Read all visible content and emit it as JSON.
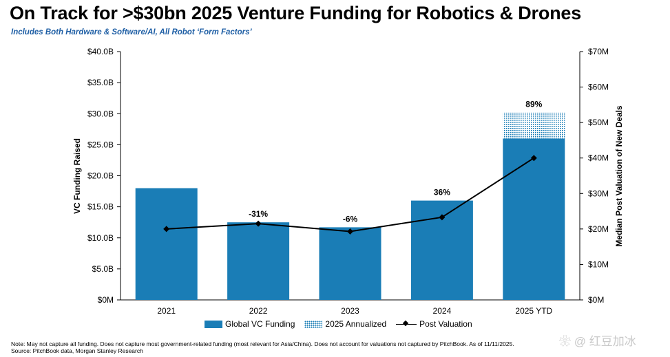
{
  "title": "On Track for >$30bn 2025 Venture Funding for Robotics & Drones",
  "subtitle": "Includes Both Hardware & Software/AI, All Robot ‘Form Factors’",
  "chart_data": {
    "type": "bar",
    "categories": [
      "2021",
      "2022",
      "2023",
      "2024",
      "2025 YTD"
    ],
    "series": [
      {
        "name": "Global VC Funding",
        "axis": "left",
        "values": [
          18.0,
          12.5,
          11.7,
          16.0,
          26.0
        ]
      },
      {
        "name": "2025 Annualized",
        "axis": "left",
        "stacked_on": "Global VC Funding",
        "values": [
          0,
          0,
          0,
          0,
          4.2
        ]
      },
      {
        "name": "Post Valuation",
        "type": "line",
        "axis": "right",
        "values": [
          20.0,
          21.5,
          19.3,
          23.3,
          40.0
        ]
      }
    ],
    "data_labels": [
      "",
      "-31%",
      "-6%",
      "36%",
      "89%"
    ],
    "ylabel": "VC Funding Raised",
    "y2label": "Median Post Valuation of New Deals",
    "ylim": [
      0,
      40
    ],
    "y2lim": [
      0,
      70
    ],
    "yticks": [
      "$0M",
      "$5.0B",
      "$10.0B",
      "$15.0B",
      "$20.0B",
      "$25.0B",
      "$30.0B",
      "$35.0B",
      "$40.0B"
    ],
    "y2ticks": [
      "$0M",
      "$10M",
      "$20M",
      "$30M",
      "$40M",
      "$50M",
      "$60M",
      "$70M"
    ],
    "colors": {
      "bar": "#1a7db6",
      "line": "#000000"
    }
  },
  "legend": {
    "funding": "Global VC Funding",
    "annualized": "2025 Annualized",
    "valuation": "Post Valuation"
  },
  "notes": {
    "line1": "Note: May not capture all funding. Does not capture most government-related funding (most relevant for Asia/China). Does not account for valuations not captured by PitchBook. As of 11/11/2025.",
    "line2": "Source: PitchBook data, Morgan Stanley Research"
  },
  "watermark": "❀ @ 红豆加冰"
}
